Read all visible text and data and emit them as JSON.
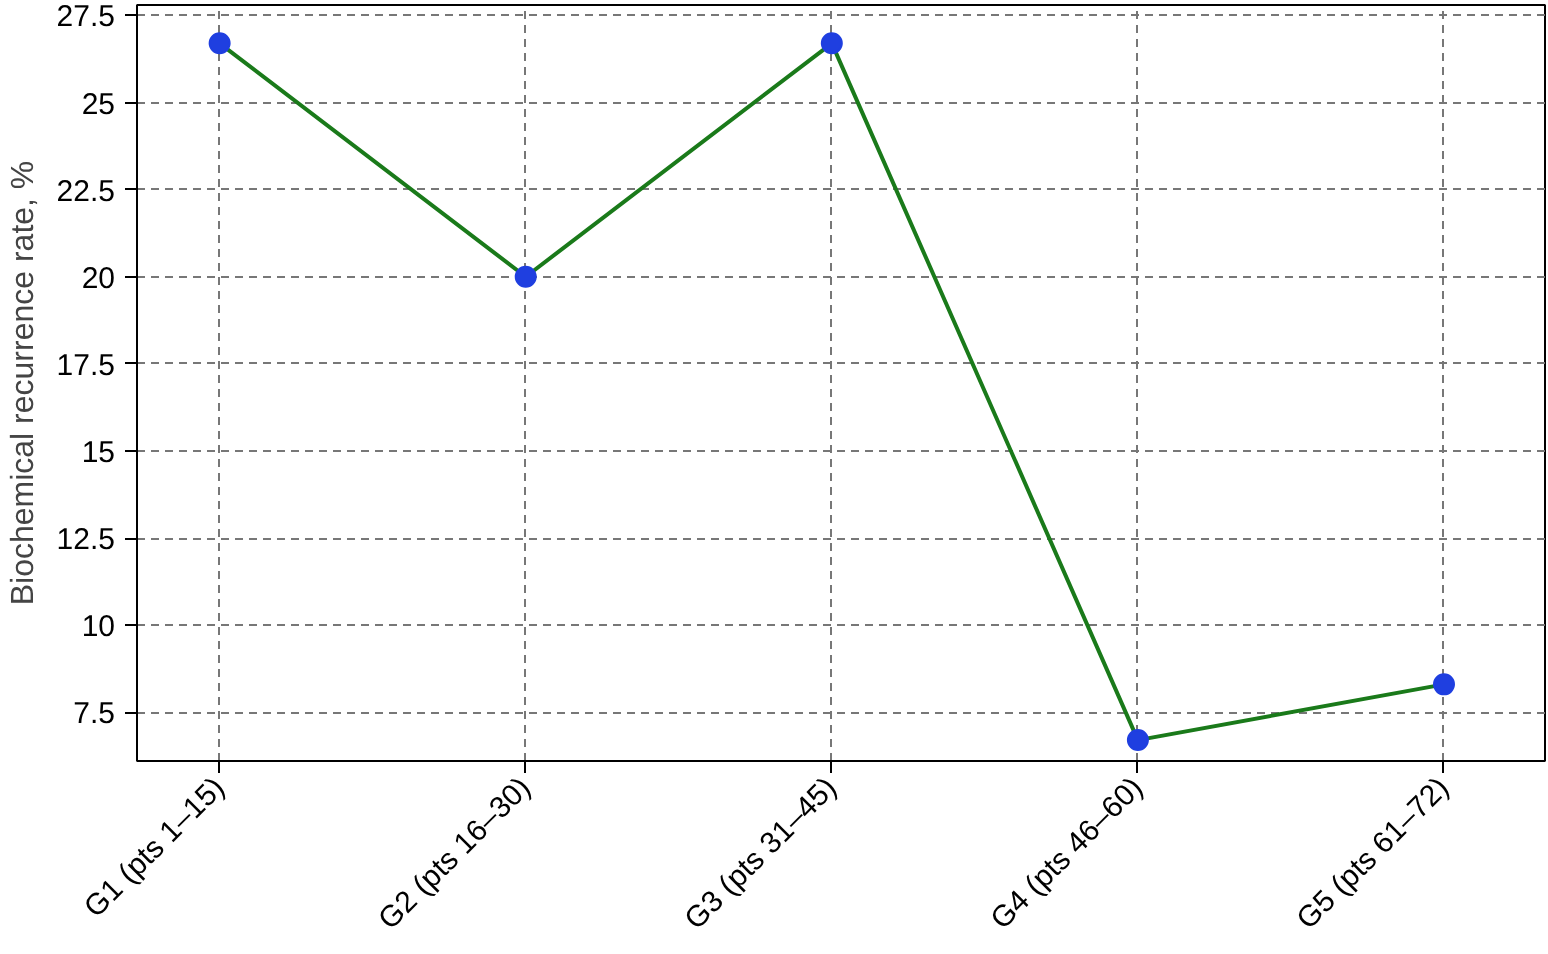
{
  "chart_data": {
    "type": "line",
    "ylabel": "Biochemical recurrence rate, %",
    "categories": [
      "G1 (pts 1–15)",
      "G2 (pts 16–30)",
      "G3 (pts 31–45)",
      "G4 (pts 46–60)",
      "G5 (pts 61–72)"
    ],
    "series": [
      {
        "color": "#1a7a1a",
        "values": [
          26.7,
          20,
          26.7,
          6.7,
          8.3
        ],
        "marker": "none"
      },
      {
        "type": "scatter",
        "color": "#1f3fe0",
        "values": [
          26.7,
          20,
          26.7,
          6.7,
          8.3
        ],
        "marker": "circle"
      }
    ],
    "ylim": [
      6.1,
      27.8
    ],
    "yticks": [
      7.5,
      10,
      12.5,
      15,
      17.5,
      20,
      22.5,
      25,
      27.5
    ],
    "grid": true,
    "line_style": "solid"
  }
}
